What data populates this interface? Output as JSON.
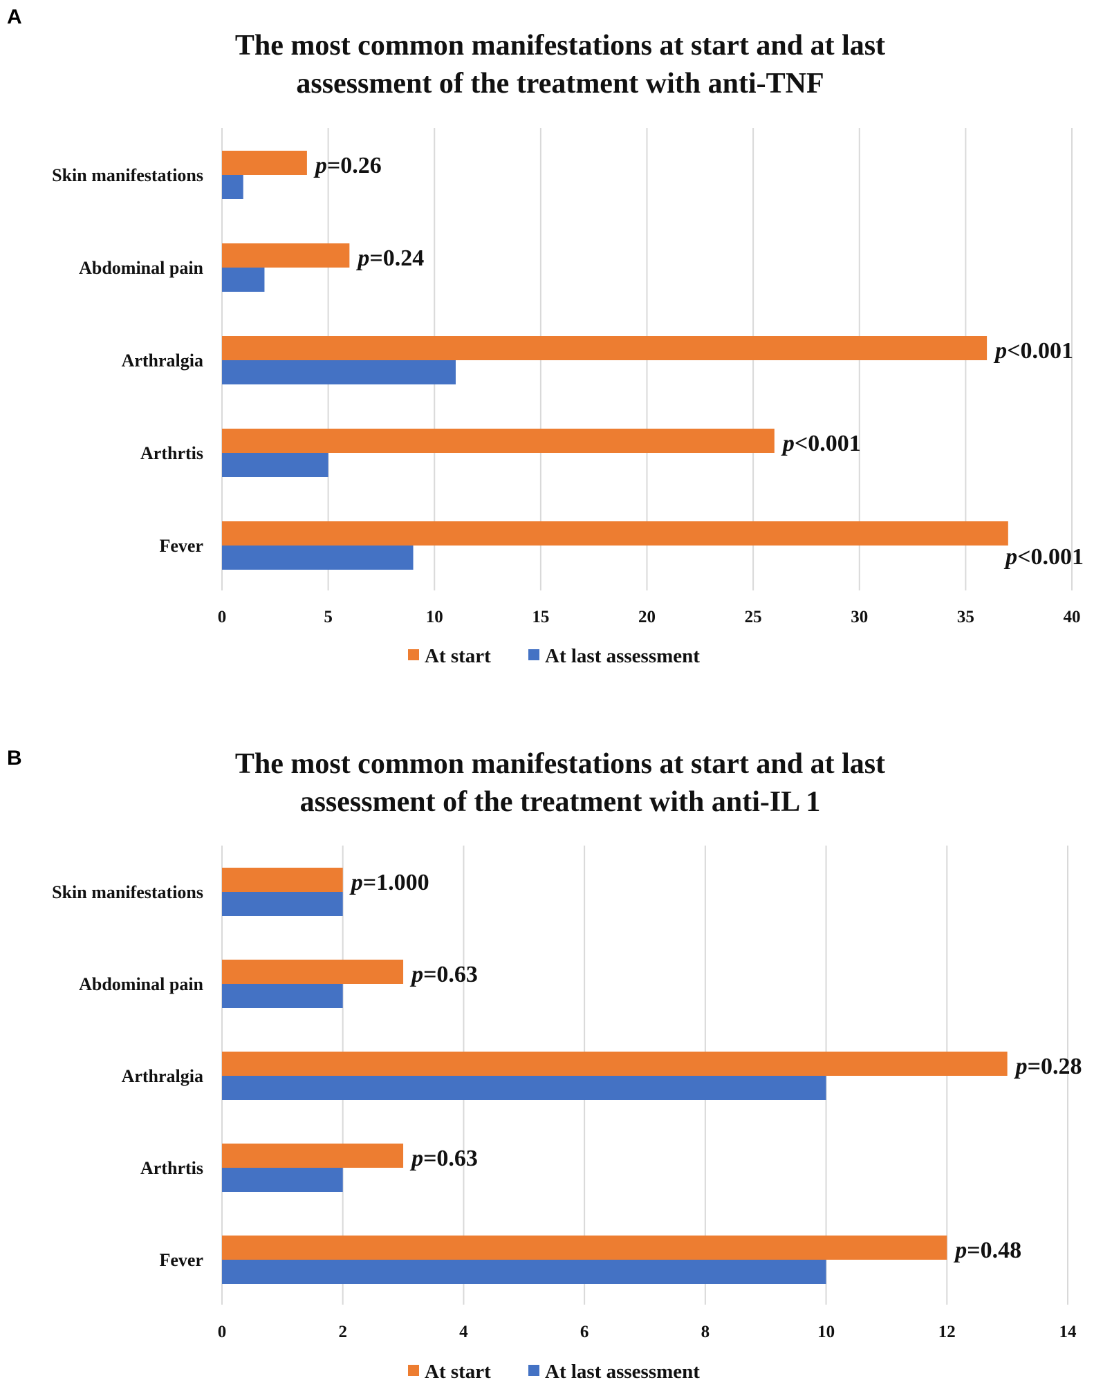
{
  "chart_data": [
    {
      "type": "bar",
      "orientation": "horizontal",
      "panel": "A",
      "title": [
        "The most common manifestations at start and at last",
        "assessment of the treatment with anti-TNF"
      ],
      "categories": [
        "Skin manifestations",
        "Abdominal pain",
        "Arthralgia",
        "Arthrtis",
        "Fever"
      ],
      "series": [
        {
          "name": "At start",
          "color": "#ED7D31",
          "values": [
            4,
            6,
            36,
            26,
            37
          ]
        },
        {
          "name": "At last assessment",
          "color": "#4472C4",
          "values": [
            1,
            2,
            11,
            5,
            9
          ]
        }
      ],
      "xlim": [
        0,
        40
      ],
      "xticks": [
        0,
        5,
        10,
        15,
        20,
        25,
        30,
        35,
        40
      ],
      "grid": true,
      "legend_position": "bottom",
      "annotations": [
        {
          "p": "p",
          "rest": "=0.26"
        },
        {
          "p": "p",
          "rest": "=0.24"
        },
        {
          "p": "p",
          "rest": "<0.001"
        },
        {
          "p": "p",
          "rest": "<0.001"
        },
        {
          "p": "p",
          "rest": "<0.001"
        }
      ]
    },
    {
      "type": "bar",
      "orientation": "horizontal",
      "panel": "B",
      "title": [
        "The most common manifestations at start and at last",
        "assessment of the treatment with anti-IL 1"
      ],
      "categories": [
        "Skin manifestations",
        "Abdominal pain",
        "Arthralgia",
        "Arthrtis",
        "Fever"
      ],
      "series": [
        {
          "name": "At start",
          "color": "#ED7D31",
          "values": [
            2,
            3,
            13,
            3,
            12
          ]
        },
        {
          "name": "At last assessment",
          "color": "#4472C4",
          "values": [
            2,
            2,
            10,
            2,
            10
          ]
        }
      ],
      "xlim": [
        0,
        14
      ],
      "xticks": [
        0,
        2,
        4,
        6,
        8,
        10,
        12,
        14
      ],
      "grid": true,
      "legend_position": "bottom",
      "annotations": [
        {
          "p": "p",
          "rest": "=1.000"
        },
        {
          "p": "p",
          "rest": "=0.63"
        },
        {
          "p": "p",
          "rest": "=0.28"
        },
        {
          "p": "p",
          "rest": "=0.63"
        },
        {
          "p": "p",
          "rest": "=0.48"
        }
      ]
    }
  ]
}
